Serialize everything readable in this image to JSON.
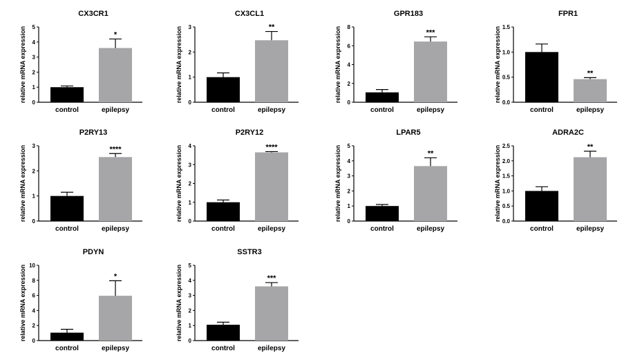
{
  "colors": {
    "control": "#000000",
    "epilepsy": "#a6a6a8",
    "axis": "#000000"
  },
  "chart_data": [
    {
      "type": "bar",
      "title": "CX3CR1",
      "ylabel": "relative mRNA expression",
      "categories": [
        "control",
        "epilepsy"
      ],
      "values": [
        1.0,
        3.6
      ],
      "errors": [
        0.08,
        0.6
      ],
      "ylim": [
        0,
        5
      ],
      "yticks": [
        "0",
        "1",
        "2",
        "3",
        "4",
        "5"
      ],
      "significance": "*"
    },
    {
      "type": "bar",
      "title": "CX3CL1",
      "ylabel": "relative mRNA expression",
      "categories": [
        "control",
        "epilepsy"
      ],
      "values": [
        1.0,
        2.47
      ],
      "errors": [
        0.17,
        0.35
      ],
      "ylim": [
        0,
        3
      ],
      "yticks": [
        "0",
        "1",
        "2",
        "3"
      ],
      "significance": "**"
    },
    {
      "type": "bar",
      "title": "GPR183",
      "ylabel": "relative mRNA expression",
      "categories": [
        "control",
        "epilepsy"
      ],
      "values": [
        1.05,
        6.45
      ],
      "errors": [
        0.3,
        0.5
      ],
      "ylim": [
        0,
        8
      ],
      "yticks": [
        "0",
        "2",
        "4",
        "6",
        "8"
      ],
      "significance": "***"
    },
    {
      "type": "bar",
      "title": "FPR1",
      "ylabel": "relative mRNA expression",
      "categories": [
        "control",
        "epilepsy"
      ],
      "values": [
        1.0,
        0.46
      ],
      "errors": [
        0.16,
        0.03
      ],
      "ylim": [
        0,
        1.5
      ],
      "yticks": [
        "0.0",
        "0.5",
        "1.0",
        "1.5"
      ],
      "significance": "**"
    },
    {
      "type": "bar",
      "title": "P2RY13",
      "ylabel": "relative mRNA expression",
      "categories": [
        "control",
        "epilepsy"
      ],
      "values": [
        1.0,
        2.55
      ],
      "errors": [
        0.15,
        0.14
      ],
      "ylim": [
        0,
        3
      ],
      "yticks": [
        "0",
        "1",
        "2",
        "3"
      ],
      "significance": "****"
    },
    {
      "type": "bar",
      "title": "P2RY12",
      "ylabel": "relative mRNA expression",
      "categories": [
        "control",
        "epilepsy"
      ],
      "values": [
        1.0,
        3.65
      ],
      "errors": [
        0.12,
        0.04
      ],
      "ylim": [
        0,
        4
      ],
      "yticks": [
        "0",
        "1",
        "2",
        "3",
        "4"
      ],
      "significance": "****"
    },
    {
      "type": "bar",
      "title": "LPAR5",
      "ylabel": "relative mRNA expression",
      "categories": [
        "control",
        "epilepsy"
      ],
      "values": [
        1.0,
        3.65
      ],
      "errors": [
        0.1,
        0.55
      ],
      "ylim": [
        0,
        5
      ],
      "yticks": [
        "0",
        "1",
        "2",
        "3",
        "4",
        "5"
      ],
      "significance": "**"
    },
    {
      "type": "bar",
      "title": "ADRA2C",
      "ylabel": "relative mRNA expression",
      "categories": [
        "control",
        "epilepsy"
      ],
      "values": [
        1.0,
        2.12
      ],
      "errors": [
        0.14,
        0.2
      ],
      "ylim": [
        0,
        2.5
      ],
      "yticks": [
        "0.0",
        "0.5",
        "1.0",
        "1.5",
        "2.0",
        "2.5"
      ],
      "significance": "**"
    },
    {
      "type": "bar",
      "title": "PDYN",
      "ylabel": "relative mRNA expression",
      "categories": [
        "control",
        "epilepsy"
      ],
      "values": [
        1.05,
        5.95
      ],
      "errors": [
        0.45,
        2.0
      ],
      "ylim": [
        0,
        10
      ],
      "yticks": [
        "0",
        "2",
        "4",
        "6",
        "8",
        "10"
      ],
      "significance": "*"
    },
    {
      "type": "bar",
      "title": "SSTR3",
      "ylabel": "relative mRNA expression",
      "categories": [
        "control",
        "epilepsy"
      ],
      "values": [
        1.05,
        3.6
      ],
      "errors": [
        0.17,
        0.25
      ],
      "ylim": [
        0,
        5
      ],
      "yticks": [
        "0",
        "1",
        "2",
        "3",
        "4",
        "5"
      ],
      "significance": "***"
    }
  ]
}
